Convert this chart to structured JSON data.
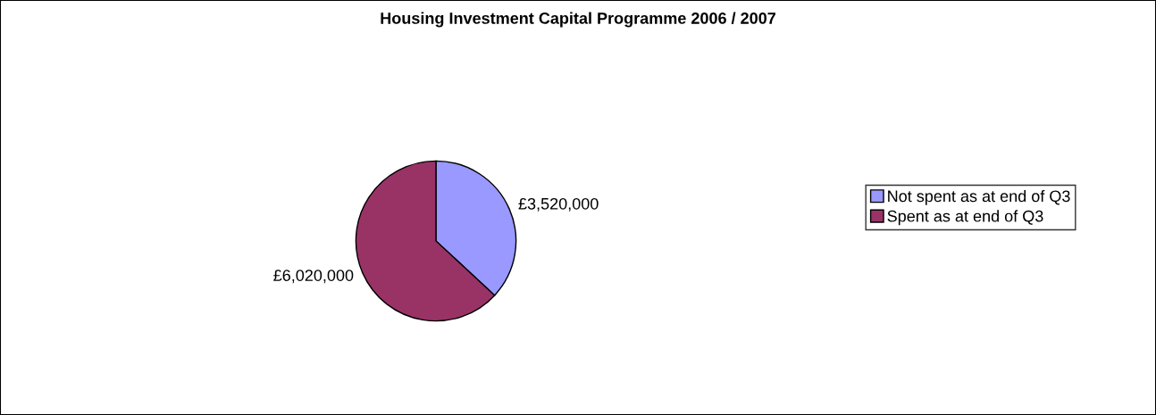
{
  "chart_data": {
    "type": "pie",
    "title": "Housing Investment Capital Programme 2006 / 2007",
    "categories": [
      "Not spent as at end of Q3",
      "Spent as at end of Q3"
    ],
    "values": [
      3520000,
      6020000
    ],
    "colors": [
      "#9999ff",
      "#993366"
    ],
    "value_labels": [
      "£3,520,000",
      "£6,020,000"
    ],
    "legend": "right"
  }
}
